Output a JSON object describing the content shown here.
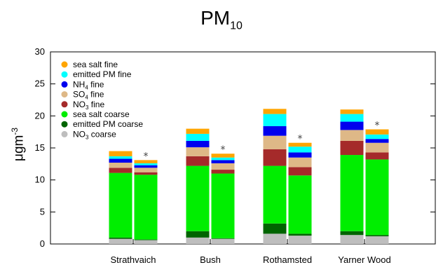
{
  "chart_data": {
    "type": "bar",
    "stacked": true,
    "title": {
      "main": "PM",
      "sub": "10"
    },
    "ylabel": {
      "main": "μgm",
      "sup": "-3"
    },
    "ylim": [
      0,
      30
    ],
    "yticks": [
      0,
      5,
      10,
      15,
      20,
      25,
      30
    ],
    "categories": [
      "Strathvaich",
      "Bush",
      "Rothamsted",
      "Yarner Wood"
    ],
    "bars_per_category": [
      "total",
      "starred"
    ],
    "marker": "*",
    "legend_position": "top-left",
    "series": [
      {
        "name": "NO3 coarse",
        "label": {
          "main": "NO",
          "sub": "3",
          "rest": " coarse"
        },
        "color": "#bebebe",
        "values": [
          [
            0.8,
            0.6
          ],
          [
            1.0,
            0.8
          ],
          [
            1.6,
            1.3
          ],
          [
            1.4,
            1.2
          ]
        ]
      },
      {
        "name": "emitted PM coarse",
        "label": {
          "main": "emitted PM coarse"
        },
        "color": "#006400",
        "values": [
          [
            0.2,
            0.1
          ],
          [
            1.0,
            0.1
          ],
          [
            1.6,
            0.3
          ],
          [
            0.6,
            0.2
          ]
        ]
      },
      {
        "name": "sea salt coarse",
        "label": {
          "main": "sea salt coarse"
        },
        "color": "#00ee00",
        "values": [
          [
            10.1,
            10.1
          ],
          [
            10.2,
            10.1
          ],
          [
            9.0,
            9.1
          ],
          [
            11.9,
            11.8
          ]
        ]
      },
      {
        "name": "NO3 fine",
        "label": {
          "main": "NO",
          "sub": "3",
          "rest": " fine"
        },
        "color": "#a52a2a",
        "values": [
          [
            0.8,
            0.4
          ],
          [
            1.5,
            0.6
          ],
          [
            2.6,
            1.3
          ],
          [
            2.2,
            1.1
          ]
        ]
      },
      {
        "name": "SO4 fine",
        "label": {
          "main": "SO",
          "sub": "4",
          "rest": " fine"
        },
        "color": "#deb887",
        "values": [
          [
            0.8,
            0.7
          ],
          [
            1.4,
            1.0
          ],
          [
            2.1,
            1.5
          ],
          [
            1.7,
            1.5
          ]
        ]
      },
      {
        "name": "NH4 fine",
        "label": {
          "main": "NH",
          "sub": "4",
          "rest": " fine"
        },
        "color": "#0000ee",
        "values": [
          [
            0.6,
            0.4
          ],
          [
            1.0,
            0.5
          ],
          [
            1.5,
            0.8
          ],
          [
            1.3,
            0.6
          ]
        ]
      },
      {
        "name": "emitted PM fine",
        "label": {
          "main": "emitted PM fine"
        },
        "color": "#00ffff",
        "values": [
          [
            0.4,
            0.3
          ],
          [
            1.1,
            0.4
          ],
          [
            1.9,
            0.9
          ],
          [
            1.2,
            0.7
          ]
        ]
      },
      {
        "name": "sea salt fine",
        "label": {
          "main": "sea salt fine"
        },
        "color": "#ffa500",
        "values": [
          [
            0.8,
            0.5
          ],
          [
            0.8,
            0.6
          ],
          [
            0.8,
            0.6
          ],
          [
            0.7,
            0.8
          ]
        ]
      }
    ]
  }
}
